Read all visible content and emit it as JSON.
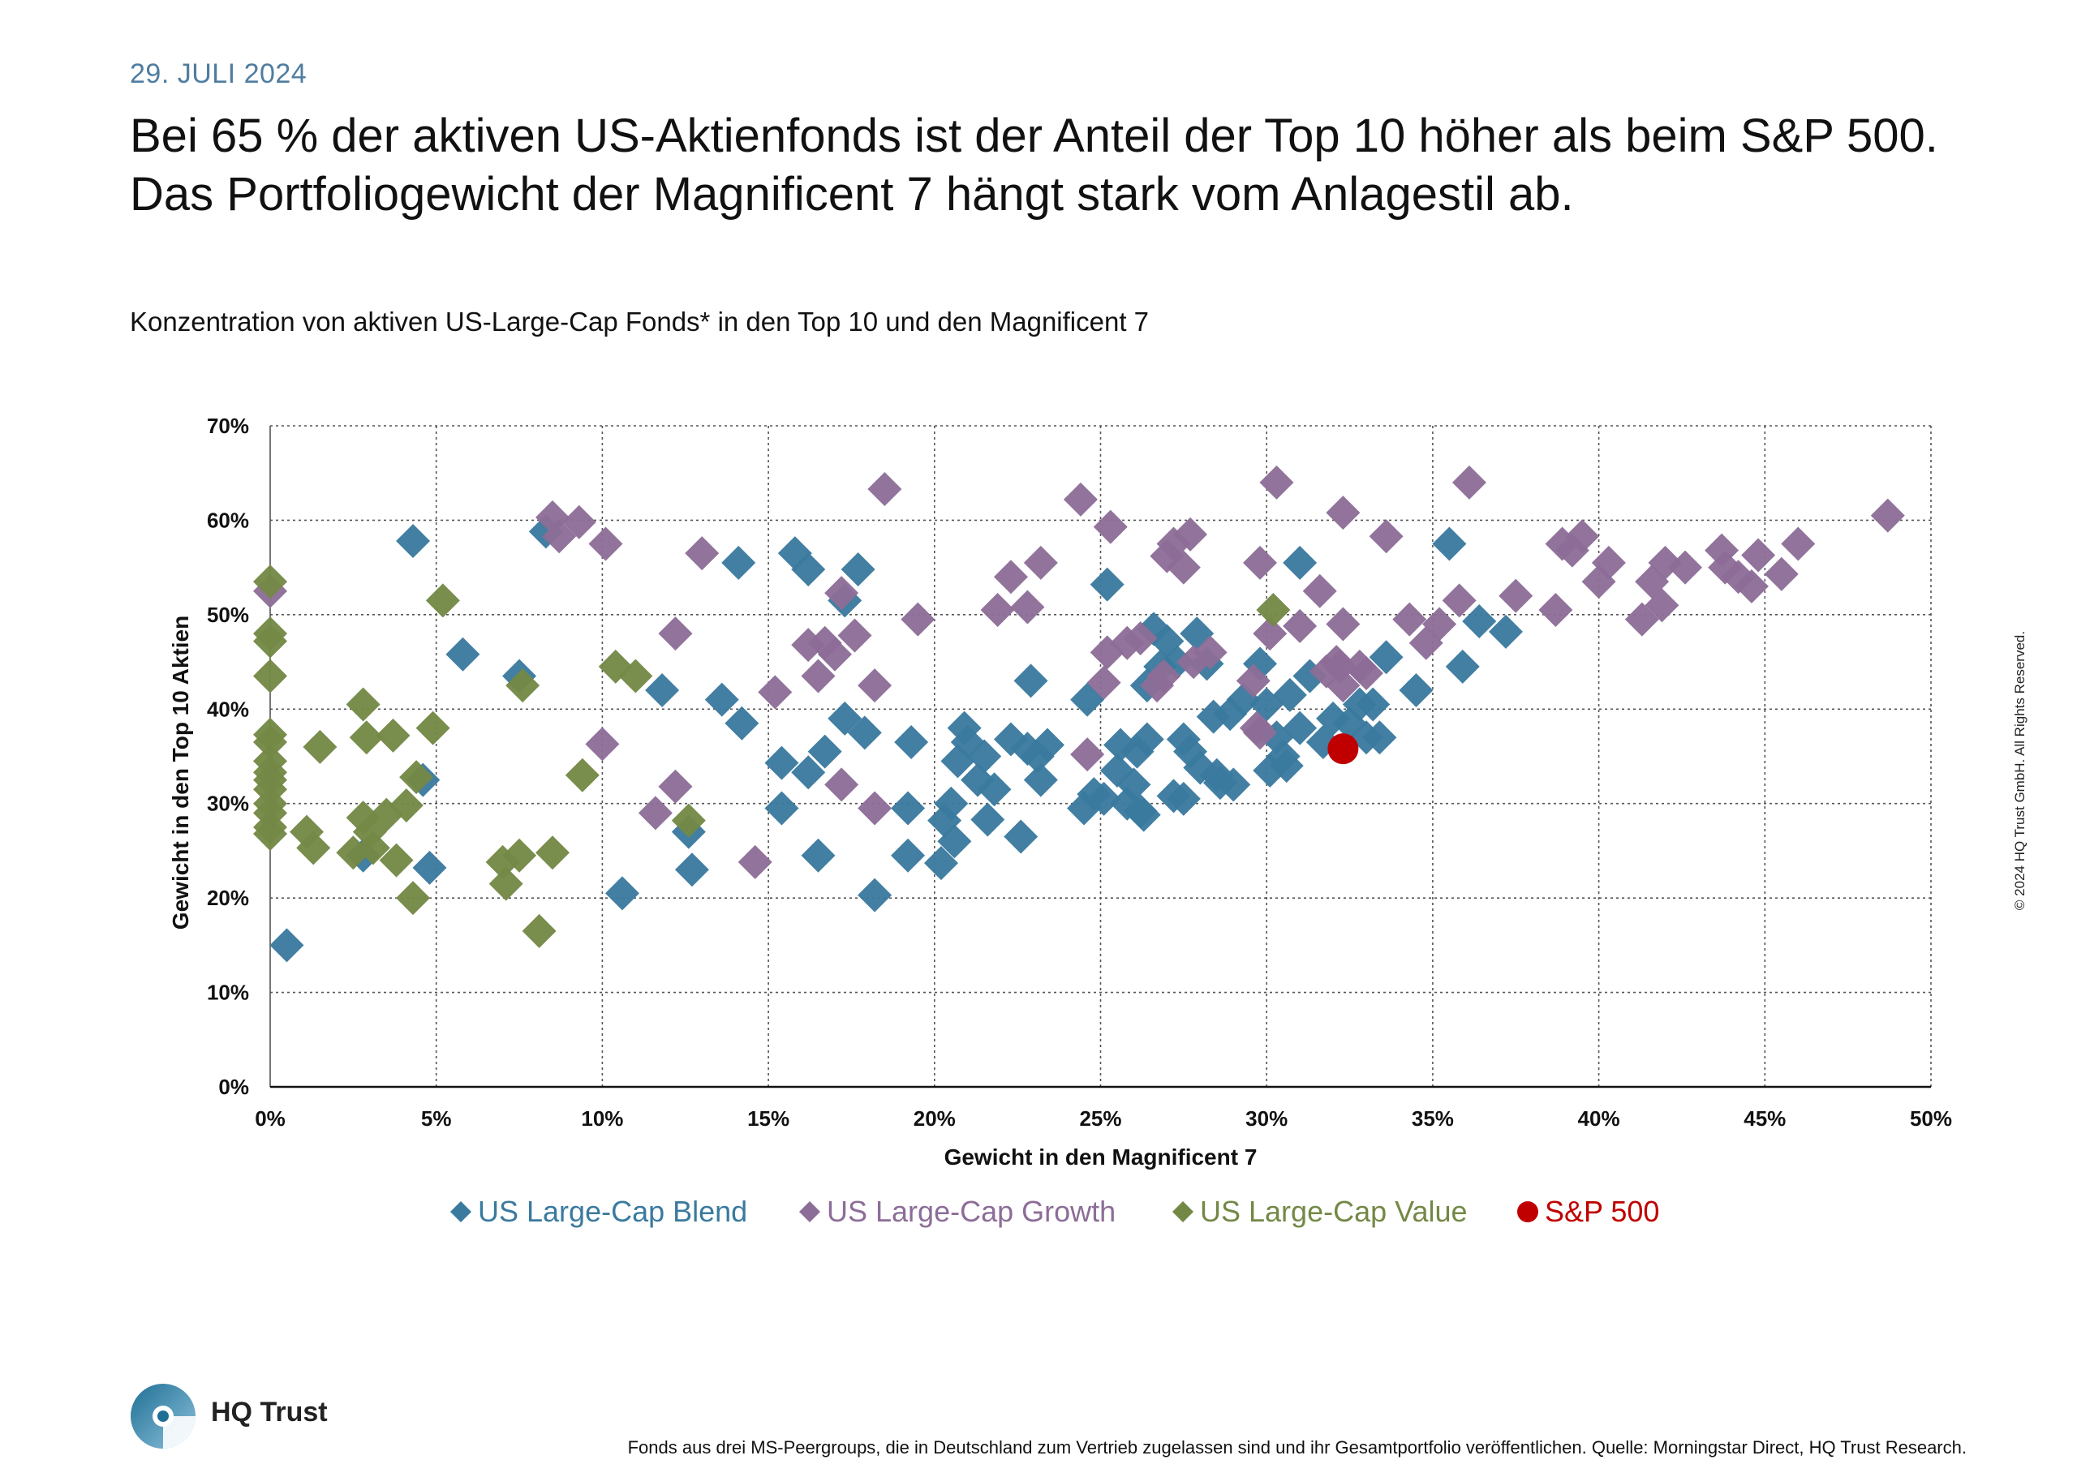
{
  "header": {
    "date": "29. JULI 2024",
    "headline": "Bei 65 % der aktiven US-Aktienfonds ist der Anteil der Top 10 höher als beim S&P 500. Das Portfoliogewicht der Magnificent 7 hängt stark vom Anlagestil ab.",
    "subtitle": "Konzentration von aktiven US-Large-Cap Fonds* in den Top 10 und den Magnificent 7"
  },
  "chart_data": {
    "type": "scatter",
    "title": "",
    "xlabel": "Gewicht in den Magnificent 7",
    "ylabel": "Gewicht in den Top 10 Aktien",
    "xlim": [
      0,
      50
    ],
    "ylim": [
      0,
      70
    ],
    "x_ticks": [
      "0%",
      "5%",
      "10%",
      "15%",
      "20%",
      "25%",
      "30%",
      "35%",
      "40%",
      "45%",
      "50%"
    ],
    "y_ticks": [
      "0%",
      "10%",
      "20%",
      "30%",
      "40%",
      "50%",
      "60%",
      "70%"
    ],
    "grid": true,
    "legend_position": "bottom",
    "series": [
      {
        "name": "US Large-Cap Blend",
        "color": "#3a7a9e",
        "marker": "diamond",
        "points": [
          [
            0.5,
            15
          ],
          [
            2.8,
            24.5
          ],
          [
            4.3,
            57.8
          ],
          [
            4.6,
            32.5
          ],
          [
            4.8,
            23.2
          ],
          [
            5.8,
            45.8
          ],
          [
            7.5,
            43.5
          ],
          [
            8.3,
            58.8
          ],
          [
            10.6,
            20.5
          ],
          [
            11.8,
            42
          ],
          [
            12.6,
            27
          ],
          [
            12.7,
            23
          ],
          [
            13.6,
            41
          ],
          [
            14.1,
            55.5
          ],
          [
            14.2,
            38.5
          ],
          [
            15.4,
            34.3
          ],
          [
            15.4,
            29.5
          ],
          [
            15.8,
            56.5
          ],
          [
            16.2,
            54.8
          ],
          [
            16.2,
            33.3
          ],
          [
            16.5,
            24.5
          ],
          [
            16.7,
            35.5
          ],
          [
            17.3,
            51.5
          ],
          [
            17.3,
            39
          ],
          [
            17.7,
            54.8
          ],
          [
            17.9,
            37.5
          ],
          [
            18.2,
            20.3
          ],
          [
            19.2,
            29.5
          ],
          [
            19.2,
            24.5
          ],
          [
            19.3,
            36.5
          ],
          [
            20.2,
            23.7
          ],
          [
            20.3,
            28.2
          ],
          [
            20.5,
            30
          ],
          [
            20.6,
            26
          ],
          [
            20.7,
            34.5
          ],
          [
            20.9,
            38
          ],
          [
            21.0,
            36.5
          ],
          [
            21.3,
            32.5
          ],
          [
            21.5,
            35
          ],
          [
            21.6,
            28.3
          ],
          [
            21.8,
            31.5
          ],
          [
            22.3,
            36.8
          ],
          [
            22.6,
            26.5
          ],
          [
            22.8,
            35.8
          ],
          [
            22.9,
            43
          ],
          [
            23.1,
            35
          ],
          [
            23.2,
            32.5
          ],
          [
            23.4,
            36.2
          ],
          [
            24.5,
            29.5
          ],
          [
            24.6,
            41
          ],
          [
            24.8,
            31
          ],
          [
            25.1,
            30.5
          ],
          [
            25.2,
            53.2
          ],
          [
            25.5,
            33.5
          ],
          [
            25.6,
            36.2
          ],
          [
            25.8,
            30
          ],
          [
            26.0,
            32
          ],
          [
            26.1,
            35.5
          ],
          [
            26.2,
            29.2
          ],
          [
            26.3,
            28.8
          ],
          [
            26.4,
            36.8
          ],
          [
            26.4,
            42.5
          ],
          [
            26.6,
            48.5
          ],
          [
            26.8,
            44.5
          ],
          [
            27.0,
            47.2
          ],
          [
            27.2,
            30.8
          ],
          [
            27.3,
            45
          ],
          [
            27.5,
            36.8
          ],
          [
            27.5,
            30.5
          ],
          [
            27.7,
            35.5
          ],
          [
            27.9,
            48
          ],
          [
            28.0,
            33.8
          ],
          [
            28.2,
            44.8
          ],
          [
            28.4,
            39.2
          ],
          [
            28.5,
            33
          ],
          [
            28.6,
            32.2
          ],
          [
            28.9,
            39.5
          ],
          [
            29.0,
            32
          ],
          [
            29.3,
            41
          ],
          [
            29.8,
            44.8
          ],
          [
            30.0,
            40.5
          ],
          [
            30.1,
            33.5
          ],
          [
            30.3,
            37
          ],
          [
            30.5,
            35
          ],
          [
            30.6,
            34
          ],
          [
            30.7,
            41.5
          ],
          [
            31.0,
            55.5
          ],
          [
            31.0,
            38
          ],
          [
            31.3,
            43.5
          ],
          [
            31.7,
            36.5
          ],
          [
            32.0,
            39
          ],
          [
            32.5,
            38.5
          ],
          [
            32.8,
            40.5
          ],
          [
            33.0,
            37
          ],
          [
            33.2,
            40.5
          ],
          [
            33.4,
            37
          ],
          [
            33.6,
            45.5
          ],
          [
            34.5,
            42
          ],
          [
            35.5,
            57.5
          ],
          [
            35.9,
            44.5
          ],
          [
            36.4,
            49.3
          ],
          [
            37.2,
            48.2
          ]
        ]
      },
      {
        "name": "US Large-Cap Growth",
        "color": "#8c6d97",
        "marker": "diamond",
        "points": [
          [
            0.0,
            52.5
          ],
          [
            8.5,
            60.3
          ],
          [
            8.7,
            58.3
          ],
          [
            9.3,
            59.8
          ],
          [
            10.0,
            36.3
          ],
          [
            10.1,
            57.5
          ],
          [
            11.6,
            29
          ],
          [
            12.2,
            48
          ],
          [
            12.2,
            31.8
          ],
          [
            13.0,
            56.5
          ],
          [
            14.6,
            23.8
          ],
          [
            15.2,
            41.8
          ],
          [
            16.2,
            46.8
          ],
          [
            16.5,
            43.5
          ],
          [
            16.7,
            47
          ],
          [
            17.0,
            45.8
          ],
          [
            17.2,
            52.3
          ],
          [
            17.2,
            32
          ],
          [
            17.6,
            47.8
          ],
          [
            18.2,
            29.5
          ],
          [
            18.2,
            42.5
          ],
          [
            18.5,
            63.3
          ],
          [
            19.5,
            49.5
          ],
          [
            21.9,
            50.5
          ],
          [
            22.3,
            54
          ],
          [
            22.8,
            50.8
          ],
          [
            23.2,
            55.5
          ],
          [
            24.4,
            62.2
          ],
          [
            24.6,
            35.2
          ],
          [
            25.1,
            42.8
          ],
          [
            25.2,
            46
          ],
          [
            25.3,
            59.3
          ],
          [
            25.8,
            47
          ],
          [
            26.2,
            47.5
          ],
          [
            26.7,
            42.5
          ],
          [
            26.9,
            43.5
          ],
          [
            27.0,
            56.2
          ],
          [
            27.2,
            57.5
          ],
          [
            27.5,
            55
          ],
          [
            27.7,
            58.5
          ],
          [
            27.8,
            45
          ],
          [
            28.3,
            46
          ],
          [
            29.6,
            43
          ],
          [
            29.7,
            38
          ],
          [
            29.8,
            37.5
          ],
          [
            29.8,
            55.5
          ],
          [
            30.1,
            48
          ],
          [
            30.3,
            64
          ],
          [
            31.0,
            48.8
          ],
          [
            31.6,
            52.5
          ],
          [
            31.8,
            44
          ],
          [
            32.1,
            45
          ],
          [
            32.2,
            44.5
          ],
          [
            32.3,
            42.5
          ],
          [
            32.3,
            49
          ],
          [
            32.3,
            60.8
          ],
          [
            32.8,
            44.5
          ],
          [
            33.0,
            43.8
          ],
          [
            33.6,
            58.3
          ],
          [
            34.3,
            49.5
          ],
          [
            34.8,
            47
          ],
          [
            35.2,
            49
          ],
          [
            35.8,
            51.5
          ],
          [
            36.1,
            64
          ],
          [
            37.5,
            52
          ],
          [
            38.7,
            50.5
          ],
          [
            38.9,
            57.5
          ],
          [
            39.2,
            56.8
          ],
          [
            39.5,
            58.3
          ],
          [
            40.0,
            53.5
          ],
          [
            40.3,
            55.5
          ],
          [
            41.3,
            49.5
          ],
          [
            41.6,
            53.5
          ],
          [
            41.9,
            51
          ],
          [
            42.0,
            55.5
          ],
          [
            42.6,
            55
          ],
          [
            43.7,
            56.8
          ],
          [
            43.8,
            55
          ],
          [
            44.2,
            54
          ],
          [
            44.6,
            53
          ],
          [
            44.8,
            56.3
          ],
          [
            45.5,
            54.3
          ],
          [
            46.0,
            57.5
          ],
          [
            48.7,
            60.5
          ]
        ]
      },
      {
        "name": "US Large-Cap Value",
        "color": "#748846",
        "marker": "diamond",
        "points": [
          [
            0.0,
            53.5
          ],
          [
            0.0,
            48
          ],
          [
            0.0,
            47.2
          ],
          [
            0.0,
            43.5
          ],
          [
            0.0,
            37.3
          ],
          [
            0.0,
            36.5
          ],
          [
            0.0,
            34.5
          ],
          [
            0.0,
            33.3
          ],
          [
            0.0,
            32.5
          ],
          [
            0.0,
            31.5
          ],
          [
            0.0,
            30
          ],
          [
            0.0,
            29
          ],
          [
            0.0,
            27.5
          ],
          [
            0.0,
            26.8
          ],
          [
            1.1,
            27
          ],
          [
            1.3,
            25.3
          ],
          [
            1.5,
            36
          ],
          [
            2.5,
            24.8
          ],
          [
            2.8,
            40.5
          ],
          [
            2.8,
            28.5
          ],
          [
            2.9,
            37
          ],
          [
            3.0,
            27
          ],
          [
            3.1,
            25.3
          ],
          [
            3.5,
            28.8
          ],
          [
            3.7,
            37.2
          ],
          [
            3.8,
            24
          ],
          [
            4.1,
            29.8
          ],
          [
            4.3,
            20
          ],
          [
            4.4,
            32.8
          ],
          [
            4.9,
            38
          ],
          [
            5.2,
            51.5
          ],
          [
            7.0,
            23.8
          ],
          [
            7.1,
            21.5
          ],
          [
            7.5,
            24.5
          ],
          [
            7.6,
            42.5
          ],
          [
            8.1,
            16.5
          ],
          [
            8.5,
            24.8
          ],
          [
            9.4,
            33
          ],
          [
            10.4,
            44.5
          ],
          [
            11.0,
            43.5
          ],
          [
            12.6,
            28.2
          ],
          [
            30.2,
            50.5
          ]
        ]
      },
      {
        "name": "S&P 500",
        "color": "#c00000",
        "marker": "circle",
        "points": [
          [
            32.3,
            35.8
          ]
        ]
      }
    ]
  },
  "footer": {
    "brand": "HQ Trust",
    "copyright": "© 2024 HQ Trust GmbH. All Rights Reserved.",
    "note": "Fonds aus drei MS-Peergroups, die in Deutschland zum Vertrieb zugelassen sind und ihr Gesamtportfolio veröffentlichen. Quelle: Morningstar Direct, HQ Trust Research."
  }
}
